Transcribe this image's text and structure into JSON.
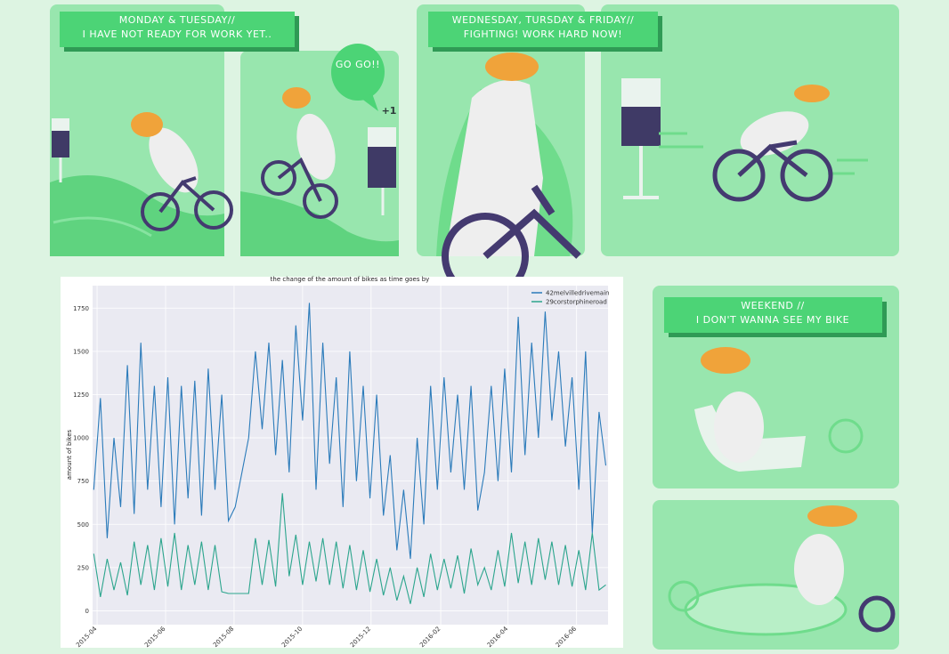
{
  "panels": {
    "monday_tuesday": {
      "title": "MONDAY & TUESDAY//",
      "subtitle": "I HAVE NOT READY FOR WORK YET..",
      "bubble": "GO GO!!",
      "plus": "+1"
    },
    "midweek": {
      "title": "WEDNESDAY, TURSDAY & FRIDAY//",
      "subtitle": "FIGHTING! WORK HARD NOW!"
    },
    "weekend": {
      "title": "WEEKEND //",
      "subtitle": "I DON'T WANNA SEE MY BIKE"
    }
  },
  "chart_data": {
    "type": "line",
    "title": "the change of the amount of bikes as time goes by",
    "ylabel": "amount of bikes",
    "x": [
      -3,
      3,
      9,
      15,
      21,
      27,
      33,
      39,
      45,
      51,
      57,
      63,
      69,
      75,
      81,
      87,
      93,
      99,
      105,
      111,
      117,
      123,
      129,
      135,
      141,
      147,
      153,
      159,
      165,
      171,
      177,
      183,
      189,
      195,
      201,
      207,
      213,
      219,
      225,
      231,
      237,
      243,
      249,
      255,
      261,
      267,
      273,
      279,
      285,
      291,
      297,
      303,
      309,
      315,
      321,
      327,
      333,
      339,
      345,
      351,
      357,
      363,
      369,
      375,
      381,
      387,
      393,
      399,
      405,
      411,
      417,
      423,
      429,
      435,
      441,
      447,
      453
    ],
    "series": [
      {
        "name": "42melvilledrivemain",
        "color": "#2b7bba",
        "values": [
          700,
          1230,
          420,
          1000,
          600,
          1420,
          560,
          1550,
          700,
          1300,
          600,
          1350,
          500,
          1300,
          650,
          1330,
          550,
          1400,
          700,
          1250,
          520,
          600,
          800,
          1000,
          1500,
          1050,
          1550,
          900,
          1450,
          800,
          1650,
          1100,
          1780,
          700,
          1550,
          850,
          1350,
          600,
          1500,
          750,
          1300,
          650,
          1250,
          550,
          900,
          350,
          700,
          300,
          1000,
          500,
          1300,
          700,
          1350,
          800,
          1250,
          700,
          1300,
          580,
          800,
          1300,
          750,
          1400,
          800,
          1700,
          900,
          1550,
          1000,
          1730,
          1100,
          1500,
          950,
          1350,
          700,
          1500,
          450,
          1150,
          840
        ]
      },
      {
        "name": "29corstorphineroad",
        "color": "#2ca58d",
        "values": [
          330,
          80,
          300,
          120,
          280,
          90,
          400,
          150,
          380,
          120,
          420,
          140,
          450,
          120,
          380,
          150,
          400,
          120,
          380,
          110,
          100,
          100,
          100,
          100,
          420,
          150,
          410,
          140,
          680,
          200,
          440,
          150,
          400,
          170,
          420,
          150,
          400,
          130,
          380,
          120,
          350,
          110,
          300,
          90,
          250,
          60,
          200,
          40,
          250,
          80,
          330,
          120,
          300,
          130,
          320,
          100,
          360,
          150,
          250,
          120,
          350,
          140,
          450,
          160,
          400,
          150,
          420,
          180,
          400,
          150,
          380,
          140,
          350,
          120,
          450,
          120,
          150
        ]
      }
    ],
    "xlim": [
      -4,
      455
    ],
    "xticks": [
      {
        "value": 0,
        "label": "2015-04"
      },
      {
        "value": 61,
        "label": "2015-06"
      },
      {
        "value": 122,
        "label": "2015-08"
      },
      {
        "value": 183,
        "label": "2015-10"
      },
      {
        "value": 244,
        "label": "2015-12"
      },
      {
        "value": 306,
        "label": "2016-02"
      },
      {
        "value": 366,
        "label": "2016-04"
      },
      {
        "value": 427,
        "label": "2016-06"
      }
    ],
    "ylim": [
      -80,
      1880
    ],
    "yticks": [
      0,
      250,
      500,
      750,
      1000,
      1250,
      1500,
      1750
    ],
    "grid": true,
    "legend": "upper right"
  }
}
